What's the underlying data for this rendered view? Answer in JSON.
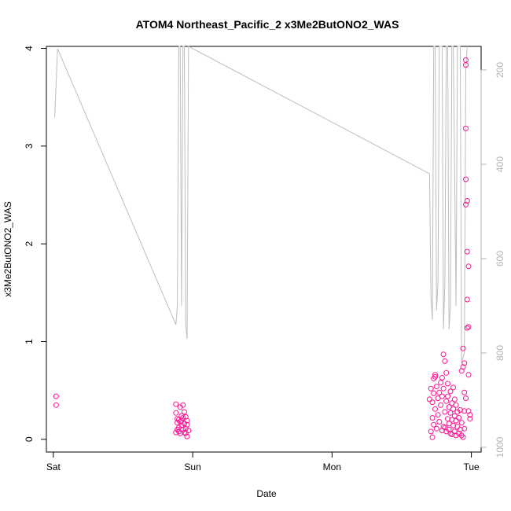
{
  "chart_data": {
    "type": "scatter",
    "title": "ATOM4 Northeast_Pacific_2 x3Me2ButONO2_WAS",
    "xlabel": "Date",
    "ylabel": "x3Me2ButONO2_WAS",
    "xlim": [
      -0.05,
      3.07
    ],
    "ylim": [
      -0.13,
      4.02
    ],
    "x_ticks": [
      {
        "value": 0,
        "label": "Sat"
      },
      {
        "value": 1,
        "label": "Sun"
      },
      {
        "value": 2,
        "label": "Mon"
      },
      {
        "value": 3,
        "label": "Tue"
      }
    ],
    "y_ticks": [
      0,
      1,
      2,
      3,
      4
    ],
    "y2_ticks": [
      200,
      400,
      600,
      800,
      1000
    ],
    "y2lim": [
      1010,
      150
    ],
    "grid": false,
    "colors": {
      "points": "#ff1493",
      "pressure_line": "#bebebe",
      "axis": "#000000",
      "right_axis": "#b3b3b3"
    },
    "series": [
      {
        "type": "scatter",
        "values": [
          [
            0.02,
            0.44
          ],
          [
            0.02,
            0.35
          ],
          [
            0.88,
            0.36
          ],
          [
            0.88,
            0.07
          ],
          [
            0.88,
            0.27
          ],
          [
            0.89,
            0.17
          ],
          [
            0.89,
            0.21
          ],
          [
            0.89,
            0.1
          ],
          [
            0.9,
            0.2
          ],
          [
            0.9,
            0.12
          ],
          [
            0.9,
            0.08
          ],
          [
            0.91,
            0.33
          ],
          [
            0.91,
            0.06
          ],
          [
            0.91,
            0.18
          ],
          [
            0.92,
            0.24
          ],
          [
            0.92,
            0.19
          ],
          [
            0.92,
            0.14
          ],
          [
            0.93,
            0.35
          ],
          [
            0.93,
            0.1
          ],
          [
            0.93,
            0.22
          ],
          [
            0.94,
            0.07
          ],
          [
            0.94,
            0.16
          ],
          [
            0.94,
            0.28
          ],
          [
            0.95,
            0.23
          ],
          [
            0.95,
            0.11
          ],
          [
            0.95,
            0.06
          ],
          [
            0.96,
            0.19
          ],
          [
            0.96,
            0.15
          ],
          [
            0.96,
            0.03
          ],
          [
            0.97,
            0.09
          ],
          [
            2.7,
            0.41
          ],
          [
            2.71,
            0.08
          ],
          [
            2.71,
            0.52
          ],
          [
            2.72,
            0.02
          ],
          [
            2.72,
            0.38
          ],
          [
            2.72,
            0.22
          ],
          [
            2.73,
            0.47
          ],
          [
            2.73,
            0.62
          ],
          [
            2.73,
            0.15
          ],
          [
            2.74,
            0.66
          ],
          [
            2.74,
            0.31
          ],
          [
            2.74,
            0.64
          ],
          [
            2.75,
            0.54
          ],
          [
            2.75,
            0.11
          ],
          [
            2.76,
            0.42
          ],
          [
            2.76,
            0.25
          ],
          [
            2.77,
            0.48
          ],
          [
            2.77,
            0.18
          ],
          [
            2.78,
            0.58
          ],
          [
            2.78,
            0.35
          ],
          [
            2.79,
            0.09
          ],
          [
            2.79,
            0.63
          ],
          [
            2.79,
            0.44
          ],
          [
            2.8,
            0.13
          ],
          [
            2.8,
            0.87
          ],
          [
            2.8,
            0.52
          ],
          [
            2.81,
            0.28
          ],
          [
            2.81,
            0.8
          ],
          [
            2.81,
            0.12
          ],
          [
            2.82,
            0.68
          ],
          [
            2.82,
            0.39
          ],
          [
            2.82,
            0.08
          ],
          [
            2.83,
            0.57
          ],
          [
            2.83,
            0.21
          ],
          [
            2.83,
            0.44
          ],
          [
            2.84,
            0.16
          ],
          [
            2.84,
            0.33
          ],
          [
            2.84,
            0.1
          ],
          [
            2.85,
            0.27
          ],
          [
            2.85,
            0.49
          ],
          [
            2.85,
            0.06
          ],
          [
            2.86,
            0.37
          ],
          [
            2.86,
            0.2
          ],
          [
            2.86,
            0.05
          ],
          [
            2.87,
            0.53
          ],
          [
            2.87,
            0.31
          ],
          [
            2.87,
            0.14
          ],
          [
            2.88,
            0.24
          ],
          [
            2.88,
            0.41
          ],
          [
            2.88,
            0.08
          ],
          [
            2.89,
            0.19
          ],
          [
            2.89,
            0.35
          ],
          [
            2.89,
            0.04
          ],
          [
            2.9,
            0.28
          ],
          [
            2.9,
            0.13
          ],
          [
            2.91,
            0.22
          ],
          [
            2.91,
            0.06
          ],
          [
            2.92,
            0.3
          ],
          [
            2.92,
            0.1
          ],
          [
            2.93,
            0.17
          ],
          [
            2.93,
            0.04
          ],
          [
            2.93,
            0.7
          ],
          [
            2.94,
            0.02
          ],
          [
            2.94,
            0.74
          ],
          [
            2.94,
            0.93
          ],
          [
            2.95,
            0.48
          ],
          [
            2.95,
            0.78
          ],
          [
            2.95,
            0.29
          ],
          [
            2.95,
            0.11
          ],
          [
            2.96,
            0.42
          ],
          [
            2.96,
            3.83
          ],
          [
            2.96,
            3.88
          ],
          [
            2.96,
            3.18
          ],
          [
            2.96,
            2.66
          ],
          [
            2.96,
            2.4
          ],
          [
            2.97,
            2.44
          ],
          [
            2.97,
            1.43
          ],
          [
            2.97,
            1.92
          ],
          [
            2.97,
            1.14
          ],
          [
            2.98,
            1.15
          ],
          [
            2.98,
            1.77
          ],
          [
            2.98,
            0.66
          ],
          [
            2.98,
            0.29
          ],
          [
            2.99,
            0.21
          ],
          [
            2.99,
            0.25
          ]
        ]
      },
      {
        "type": "line",
        "axis": "right",
        "values": [
          [
            0.01,
            300
          ],
          [
            0.03,
            155
          ],
          [
            0.88,
            740
          ],
          [
            0.89,
            700
          ],
          [
            0.9,
            150
          ],
          [
            0.91,
            150
          ],
          [
            0.92,
            700
          ],
          [
            0.93,
            150
          ],
          [
            0.94,
            150
          ],
          [
            0.95,
            740
          ],
          [
            0.96,
            770
          ],
          [
            0.97,
            150
          ],
          [
            2.7,
            420
          ],
          [
            2.71,
            680
          ],
          [
            2.72,
            730
          ],
          [
            2.73,
            150
          ],
          [
            2.74,
            150
          ],
          [
            2.75,
            710
          ],
          [
            2.76,
            650
          ],
          [
            2.77,
            150
          ],
          [
            2.79,
            150
          ],
          [
            2.8,
            750
          ],
          [
            2.81,
            650
          ],
          [
            2.82,
            150
          ],
          [
            2.83,
            150
          ],
          [
            2.84,
            750
          ],
          [
            2.85,
            700
          ],
          [
            2.86,
            150
          ],
          [
            2.87,
            150
          ],
          [
            2.89,
            700
          ],
          [
            2.9,
            150
          ],
          [
            2.92,
            150
          ],
          [
            2.93,
            820
          ],
          [
            2.95,
            800
          ],
          [
            2.96,
            200
          ],
          [
            2.97,
            150
          ]
        ]
      }
    ]
  }
}
